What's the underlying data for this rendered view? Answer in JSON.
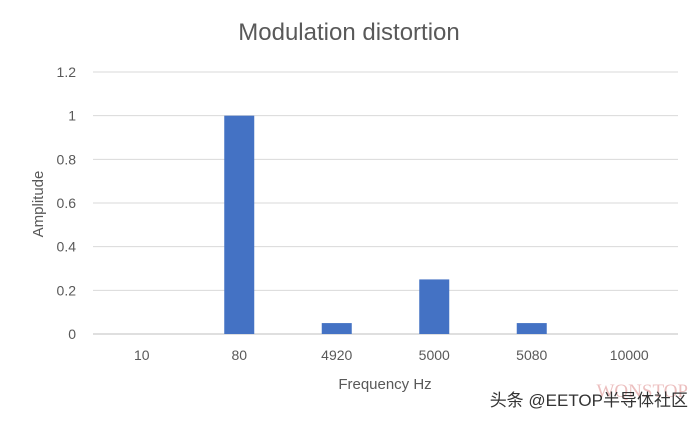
{
  "chart_data": {
    "type": "bar",
    "title": "Modulation distortion",
    "xlabel": "Frequency Hz",
    "ylabel": "Amplitude",
    "categories": [
      "10",
      "80",
      "4920",
      "5000",
      "5080",
      "10000"
    ],
    "values": [
      0,
      1,
      0.05,
      0.25,
      0.05,
      0
    ],
    "ylim": [
      0,
      1.2
    ],
    "yticks": [
      "0",
      "0.2",
      "0.4",
      "0.6",
      "0.8",
      "1",
      "1.2"
    ],
    "bar_color": "#4472c4",
    "grid": true,
    "legend": "none"
  },
  "watermark": {
    "text": "头条 @EETOP半导体社区",
    "logo": "WQNSTOP"
  }
}
